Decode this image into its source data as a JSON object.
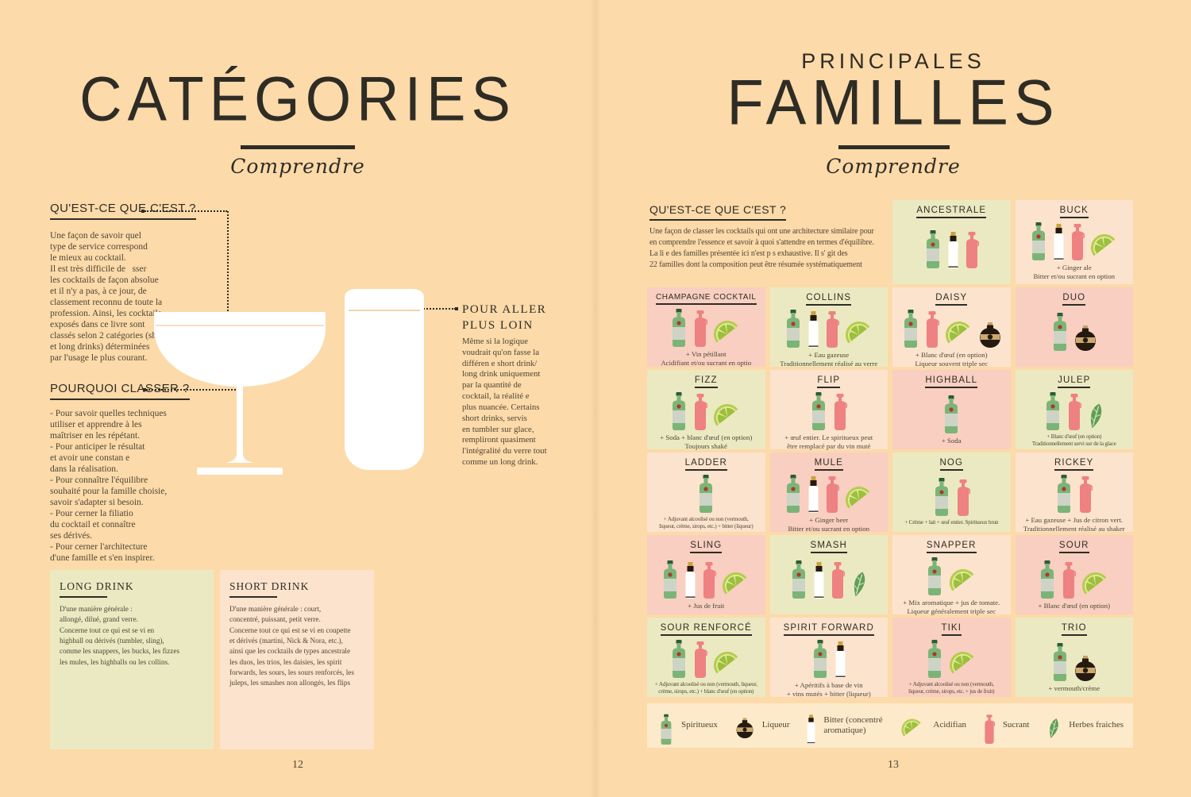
{
  "colors": {
    "page_bg": "#fcdaa9",
    "ink": "#2e2c25",
    "body_ink": "#4e4636",
    "tone_green": "#ebe9c2",
    "tone_pink": "#f8cfc0",
    "tone_peach": "#fce3cd",
    "legend_bg": "#fdeaca",
    "spirit_green": "#7cb478",
    "sucrant_pink": "#ee8181",
    "dark_brown": "#241a10",
    "lime_green": "#b6cc4e",
    "leaf_green": "#5f9e53"
  },
  "left_page": {
    "title": "CATÉGORIES",
    "subtitle": "Comprendre",
    "what_heading": "QU'EST-CE QUE C'EST ?",
    "what_text": "Une façon de savoir quel\ntype de service correspond\nle mieux au cocktail.\nIl est très difficile de   sser\nles cocktails de façon absolue\net il n'y a pas, à ce jour, de\nclassement reconnu de toute la\nprofession. Ainsi, les cocktails\nexposés dans ce livre sont\nclassés selon 2 catégories (short\net long drinks) déterminées\npar l'usage le plus courant.",
    "why_heading": "POURQUOI CLASSER ?",
    "why_text": "- Pour savoir quelles techniques\nutiliser et apprendre à les\nmaîtriser en les répétant.\n- Pour anticiper le résultat\net avoir une constan e\ndans la réalisation.\n- Pour connaître l'équilibre\nsouhaité pour la famille choisie,\nsavoir s'adapter si besoin.\n- Pour cerner la filiatio\ndu cocktail et connaître\nses dérivés.\n- Pour cerner l'architecture\nd'une famille et s'en inspirer.",
    "further_heading": "POUR ALLER\nPLUS LOIN",
    "further_text": "Même si la logique\nvoudrait qu'on fasse la\ndifféren e short drink/\nlong drink uniquement\npar la quantité de\ncocktail, la réalité e\nplus nuancée. Certains\nshort drinks, servis\nen tumbler sur glace,\nrempliront quasiment\nl'intégralité du verre tout\ncomme un long drink.",
    "long_drink": {
      "title": "LONG DRINK",
      "text": "D'une manière générale :\nallongé, dilué, grand verre.\nConcerne tout ce qui est se vi en\nhighball ou dérivés (tumbler, sling),\ncomme les snappers, les bucks, les fizzes\nles mules, les highballs ou les collins."
    },
    "short_drink": {
      "title": "SHORT DRINK",
      "text": "D'une manière générale : court,\nconcentré, puissant, petit verre.\nConcerne tout ce qui est se vi en coupette\net dérivés (martini, Nick & Nora, etc.),\nainsi que les cocktails de types ancestrale\nles duos, les trios, les daisies, les spirit\nforwards, les sours, les sours renforcés, les\njuleps, les smashes non allongés, les flips"
    },
    "page_number": "12"
  },
  "right_page": {
    "pretitle": "PRINCIPALES",
    "title": "FAMILLES",
    "subtitle": "Comprendre",
    "what_heading": "QU'EST-CE QUE C'EST ?",
    "what_text": "Une façon de classer les cocktails qui ont une architecture similaire pour\nen comprendre l'essence et savoir à quoi s'attendre en termes d'équilibre.\nLa li e des familles présentée ici n'est p s exhaustive. Il s' git des\n22 familles dont la composition peut être résumée systématiquement",
    "families": [
      {
        "name": "ANCESTRALE",
        "tone": "green",
        "icons": [
          "spirit",
          "bitter",
          "sucrant"
        ],
        "caption": ""
      },
      {
        "name": "BUCK",
        "tone": "peach",
        "icons": [
          "spirit",
          "bitter",
          "sucrant",
          "lime"
        ],
        "caption": "+ Ginger ale\nBitter et/ou sucrant en option"
      },
      {
        "name": "CHAMPAGNE COCKTAIL",
        "tone": "pink",
        "icons": [
          "spirit",
          "sucrant",
          "lime"
        ],
        "caption": "+ Vin pétillant\nAcidifiant et/ou sucrant en optio"
      },
      {
        "name": "COLLINS",
        "tone": "green",
        "icons": [
          "spirit",
          "bitter",
          "sucrant",
          "lime"
        ],
        "caption": "+ Eau gazeuse\nTraditionnellement réalisé au verre"
      },
      {
        "name": "DAISY",
        "tone": "peach",
        "icons": [
          "spirit",
          "sucrant",
          "lime",
          "liqueur"
        ],
        "caption": "+ Blanc d'œuf (en option)\nLiqueur souvent triple sec"
      },
      {
        "name": "DUO",
        "tone": "pink",
        "icons": [
          "spirit",
          "liqueur"
        ],
        "caption": ""
      },
      {
        "name": "FIZZ",
        "tone": "green",
        "icons": [
          "spirit",
          "sucrant",
          "lime"
        ],
        "caption": "+ Soda + blanc d'œuf (en option)\nToujours shaké"
      },
      {
        "name": "FLIP",
        "tone": "peach",
        "icons": [
          "spirit",
          "sucrant"
        ],
        "caption": "+ œuf entier. Le spiritueux peut\nêtre remplacé par du vin muté"
      },
      {
        "name": "HIGHBALL",
        "tone": "pink",
        "icons": [
          "spirit"
        ],
        "caption": "+ Soda"
      },
      {
        "name": "JULEP",
        "tone": "green",
        "icons": [
          "spirit",
          "sucrant",
          "herb"
        ],
        "caption": "+ Blanc d'œuf (en option)\nTraditionnellement servi sur de la glace"
      },
      {
        "name": "LADDER",
        "tone": "peach",
        "icons": [
          "spirit"
        ],
        "caption": "+ Adjuvant alcoolisé ou non (vermouth,\nliqueur, crème, sirops, etc.) + bitter (liqueur)"
      },
      {
        "name": "MULE",
        "tone": "pink",
        "icons": [
          "spirit",
          "bitter",
          "sucrant",
          "lime"
        ],
        "caption": "+ Ginger beer\nBitter et/ou sucrant en option"
      },
      {
        "name": "NOG",
        "tone": "green",
        "icons": [
          "spirit",
          "sucrant"
        ],
        "caption": "+ Crème + lait + œuf entier. Spiritueux brun"
      },
      {
        "name": "RICKEY",
        "tone": "peach",
        "icons": [
          "spirit",
          "sucrant"
        ],
        "caption": "+ Eau gazeuse + Jus de citron vert.\nTraditionnellement réalisé au shaker"
      },
      {
        "name": "SLING",
        "tone": "pink",
        "icons": [
          "spirit",
          "bitter",
          "sucrant",
          "lime"
        ],
        "caption": "+ Jus de fruit"
      },
      {
        "name": "SMASH",
        "tone": "green",
        "icons": [
          "spirit",
          "bitter",
          "sucrant",
          "herb"
        ],
        "caption": ""
      },
      {
        "name": "SNAPPER",
        "tone": "peach",
        "icons": [
          "spirit",
          "lime"
        ],
        "caption": "+ Mix aromatique + jus de tomate.\nLiqueur généralement triple sec"
      },
      {
        "name": "SOUR",
        "tone": "pink",
        "icons": [
          "spirit",
          "sucrant",
          "lime"
        ],
        "caption": "+ Blanc d'œuf (en option)"
      },
      {
        "name": "SOUR RENFORCÉ",
        "tone": "green",
        "icons": [
          "spirit",
          "sucrant",
          "lime"
        ],
        "caption": "+ Adjuvant alcoolisé ou non (vermouth, liqueur,\ncrème, sirops, etc.) + blanc d'œuf (en option)"
      },
      {
        "name": "SPIRIT FORWARD",
        "tone": "peach",
        "icons": [
          "spirit",
          "bitter"
        ],
        "caption": "+ Apéritifs à base de vin\n+ vins mutés + bitter (liqueur)"
      },
      {
        "name": "TIKI",
        "tone": "pink",
        "icons": [
          "spirit",
          "lime"
        ],
        "caption": "+ Adjuvant alcoolisé ou non (vermouth,\nliqueur, crème, sirops, etc. + jus de fruit)"
      },
      {
        "name": "TRIO",
        "tone": "green",
        "icons": [
          "spirit",
          "liqueur"
        ],
        "caption": "+ vermouth/crème"
      }
    ],
    "legend": [
      {
        "icon": "spirit",
        "label": "Spiritueux"
      },
      {
        "icon": "liqueur",
        "label": "Liqueur"
      },
      {
        "icon": "bitter",
        "label": "Bitter (concentré\naromatique)"
      },
      {
        "icon": "lime",
        "label": "Acidifian"
      },
      {
        "icon": "sucrant",
        "label": "Sucrant"
      },
      {
        "icon": "herb",
        "label": "Herbes fraiches"
      }
    ],
    "page_number": "13"
  }
}
